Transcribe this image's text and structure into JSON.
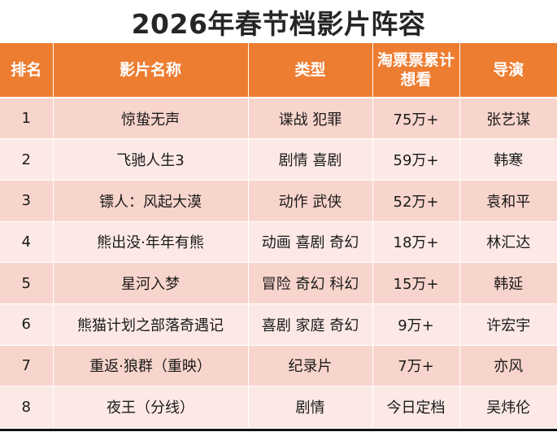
{
  "title": "2026年春节档影片阵容",
  "colors": {
    "header_bg": "#ED7D31",
    "header_text": "#FFFFFF",
    "row_dark": "#F8D5CC",
    "row_light": "#FCE9E6",
    "title_text": "#262626"
  },
  "table": {
    "headers": {
      "rank": "排名",
      "name": "影片名称",
      "genre": "类型",
      "want_line1": "淘票票累计",
      "want_line2": "想看",
      "director": "导演"
    },
    "rows": [
      {
        "rank": "1",
        "name": "惊蛰无声",
        "genre": "谍战 犯罪",
        "want": "75万+",
        "director": "张艺谋"
      },
      {
        "rank": "2",
        "name": "飞驰人生3",
        "genre": "剧情 喜剧",
        "want": "59万+",
        "director": "韩寒"
      },
      {
        "rank": "3",
        "name": "镖人：风起大漠",
        "genre": "动作 武侠",
        "want": "52万+",
        "director": "袁和平"
      },
      {
        "rank": "4",
        "name": "熊出没·年年有熊",
        "genre": "动画 喜剧 奇幻",
        "want": "18万+",
        "director": "林汇达"
      },
      {
        "rank": "5",
        "name": "星河入梦",
        "genre": "冒险 奇幻 科幻",
        "want": "15万+",
        "director": "韩延"
      },
      {
        "rank": "6",
        "name": "熊猫计划之部落奇遇记",
        "genre": "喜剧 家庭 奇幻",
        "want": "9万+",
        "director": "许宏宇"
      },
      {
        "rank": "7",
        "name": "重返·狼群（重映）",
        "genre": "纪录片",
        "want": "7万+",
        "director": "亦风"
      },
      {
        "rank": "8",
        "name": "夜王（分线）",
        "genre": "剧情",
        "want": "今日定档",
        "director": "吴炜伦"
      }
    ]
  }
}
